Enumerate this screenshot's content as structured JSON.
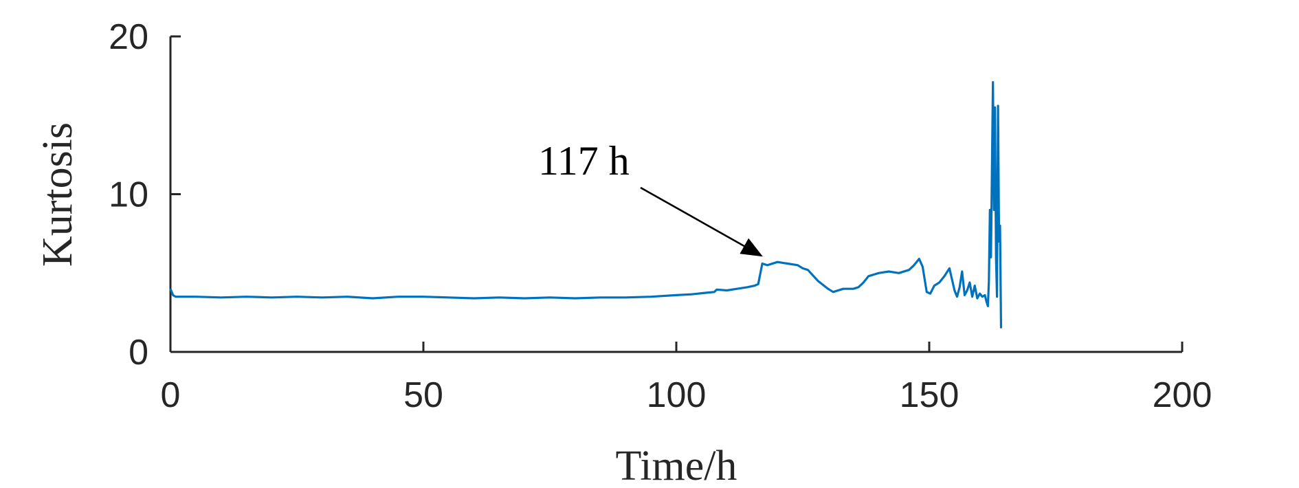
{
  "chart_data": {
    "type": "line",
    "title": "",
    "xlabel": "Time/h",
    "ylabel": "Kurtosis",
    "xlim": [
      0,
      200
    ],
    "ylim": [
      0,
      20
    ],
    "xticks": [
      0,
      50,
      100,
      150,
      200
    ],
    "yticks": [
      0,
      10,
      20
    ],
    "xtick_labels": [
      "0",
      "50",
      "100",
      "150",
      "200"
    ],
    "ytick_labels": [
      "0",
      "10",
      "20"
    ],
    "grid": false,
    "series": [
      {
        "color": "#0072BD",
        "x": [
          0,
          0.5,
          1,
          5,
          10,
          15,
          20,
          25,
          30,
          35,
          40,
          45,
          50,
          55,
          60,
          65,
          70,
          75,
          80,
          85,
          90,
          95,
          100,
          103,
          106,
          107.5,
          108,
          110,
          112,
          114,
          115.5,
          116.2,
          117,
          118,
          120,
          122,
          124,
          125,
          126,
          128,
          130,
          131,
          133,
          135,
          136,
          137,
          138,
          140,
          142,
          144,
          146,
          147,
          148,
          148.7,
          149.5,
          150.2,
          151,
          152,
          153,
          154,
          155,
          155.5,
          156,
          156.5,
          157,
          157.5,
          158,
          158.5,
          159,
          159.5,
          160,
          160.5,
          161,
          161.3,
          161.6,
          161.8,
          162,
          162.2,
          162.4,
          162.6,
          162.8,
          163,
          163.2,
          163.4,
          163.6,
          163.8,
          164,
          164.2
        ],
        "y": [
          4.0,
          3.6,
          3.5,
          3.5,
          3.45,
          3.5,
          3.45,
          3.5,
          3.45,
          3.5,
          3.4,
          3.5,
          3.5,
          3.45,
          3.4,
          3.45,
          3.4,
          3.45,
          3.4,
          3.45,
          3.45,
          3.5,
          3.6,
          3.65,
          3.75,
          3.8,
          3.95,
          3.9,
          4.0,
          4.1,
          4.2,
          4.3,
          5.6,
          5.5,
          5.7,
          5.6,
          5.5,
          5.3,
          5.2,
          4.5,
          4.0,
          3.8,
          4.0,
          4.0,
          4.1,
          4.4,
          4.8,
          5.0,
          5.1,
          5.0,
          5.2,
          5.5,
          5.9,
          5.4,
          3.8,
          3.7,
          4.2,
          4.4,
          4.8,
          5.3,
          3.9,
          3.5,
          4.1,
          5.1,
          3.6,
          3.9,
          4.4,
          3.5,
          4.2,
          3.4,
          3.7,
          3.5,
          3.6,
          3.2,
          2.9,
          4.5,
          9.0,
          6.0,
          11.8,
          17.1,
          9.0,
          15.5,
          6.0,
          3.5,
          15.6,
          7.0,
          8.0,
          1.5
        ]
      }
    ],
    "annotations": [
      {
        "text": "117 h",
        "arrow_to": [
          116.8,
          6.1
        ]
      }
    ]
  }
}
